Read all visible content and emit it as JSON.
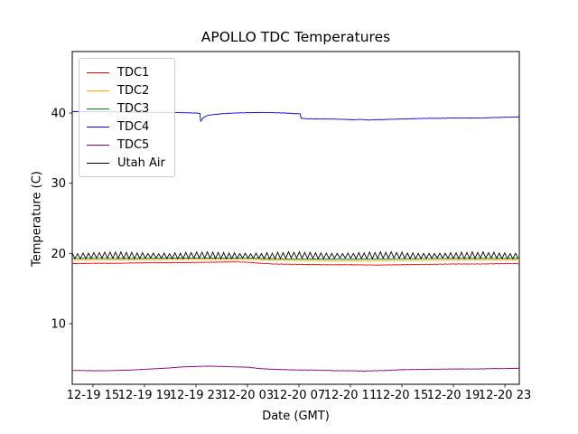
{
  "chart_data": {
    "type": "line",
    "title": "APOLLO TDC Temperatures",
    "xlabel": "Date (GMT)",
    "ylabel": "Temperature (C)",
    "grid": false,
    "legend_position": "upper left",
    "x_axis": {
      "unit": "hours after first tick (12-19 15:00 GMT)",
      "lim": [
        -1.61,
        33.12
      ],
      "ticks": [
        {
          "h": 0,
          "label": "12-19 15"
        },
        {
          "h": 4,
          "label": "12-19 19"
        },
        {
          "h": 8,
          "label": "12-19 23"
        },
        {
          "h": 12,
          "label": "12-20 03"
        },
        {
          "h": 16,
          "label": "12-20 07"
        },
        {
          "h": 20,
          "label": "12-20 11"
        },
        {
          "h": 24,
          "label": "12-20 15"
        },
        {
          "h": 28,
          "label": "12-20 19"
        },
        {
          "h": 32,
          "label": "12-20 23"
        }
      ]
    },
    "y_axis": {
      "lim": [
        1.37,
        48.76
      ],
      "ticks": [
        {
          "v": 10,
          "label": "10"
        },
        {
          "v": 20,
          "label": "20"
        },
        {
          "v": 30,
          "label": "30"
        },
        {
          "v": 40,
          "label": "40"
        }
      ]
    },
    "series": [
      {
        "name": "TDC1",
        "color": "#ff0000",
        "noise": 0.035,
        "points": [
          [
            -1.61,
            18.55
          ],
          [
            0,
            18.6
          ],
          [
            2,
            18.6
          ],
          [
            3,
            18.65
          ],
          [
            5,
            18.7
          ],
          [
            7,
            18.7
          ],
          [
            9,
            18.75
          ],
          [
            11,
            18.8
          ],
          [
            12,
            18.75
          ],
          [
            13,
            18.6
          ],
          [
            14,
            18.5
          ],
          [
            16,
            18.45
          ],
          [
            18,
            18.4
          ],
          [
            20,
            18.4
          ],
          [
            22,
            18.35
          ],
          [
            24,
            18.4
          ],
          [
            26,
            18.45
          ],
          [
            28,
            18.5
          ],
          [
            30,
            18.5
          ],
          [
            32,
            18.55
          ],
          [
            33.12,
            18.55
          ]
        ]
      },
      {
        "name": "TDC2",
        "color": "#ffa500",
        "noise": 0.02,
        "points": [
          [
            -1.61,
            19.05
          ],
          [
            4,
            19.1
          ],
          [
            8,
            19.15
          ],
          [
            12,
            19.15
          ],
          [
            14,
            19.05
          ],
          [
            16,
            19.0
          ],
          [
            20,
            18.95
          ],
          [
            24,
            19.0
          ],
          [
            28,
            19.05
          ],
          [
            33.12,
            19.1
          ]
        ]
      },
      {
        "name": "TDC3",
        "color": "#008000",
        "noise": 0.02,
        "points": [
          [
            -1.61,
            19.3
          ],
          [
            4,
            19.3
          ],
          [
            8,
            19.35
          ],
          [
            12,
            19.35
          ],
          [
            14,
            19.25
          ],
          [
            16,
            19.2
          ],
          [
            20,
            19.2
          ],
          [
            24,
            19.25
          ],
          [
            28,
            19.3
          ],
          [
            33.12,
            19.3
          ]
        ]
      },
      {
        "name": "TDC4",
        "color": "#0000ee",
        "noise": 0.03,
        "points": [
          [
            -1.61,
            40.2
          ],
          [
            0,
            40.18
          ],
          [
            2,
            40.15
          ],
          [
            4,
            40.1
          ],
          [
            6,
            40.08
          ],
          [
            7,
            40.05
          ],
          [
            8,
            40.0
          ],
          [
            8.3,
            39.95
          ],
          [
            8.37,
            38.85
          ],
          [
            8.55,
            39.3
          ],
          [
            8.8,
            39.6
          ],
          [
            9.2,
            39.75
          ],
          [
            10,
            39.9
          ],
          [
            11,
            40.0
          ],
          [
            12,
            40.05
          ],
          [
            13,
            40.08
          ],
          [
            14,
            40.05
          ],
          [
            15,
            40.0
          ],
          [
            15.8,
            39.9
          ],
          [
            16.1,
            39.9
          ],
          [
            16.17,
            39.25
          ],
          [
            16.5,
            39.2
          ],
          [
            17.5,
            39.15
          ],
          [
            18.5,
            39.15
          ],
          [
            19.5,
            39.1
          ],
          [
            20.3,
            39.05
          ],
          [
            20.8,
            39.1
          ],
          [
            21.3,
            39.0
          ],
          [
            21.8,
            39.05
          ],
          [
            23,
            39.1
          ],
          [
            24,
            39.15
          ],
          [
            25,
            39.2
          ],
          [
            26,
            39.25
          ],
          [
            27,
            39.25
          ],
          [
            28,
            39.3
          ],
          [
            29,
            39.3
          ],
          [
            30,
            39.3
          ],
          [
            31,
            39.35
          ],
          [
            32,
            39.4
          ],
          [
            33.12,
            39.45
          ]
        ]
      },
      {
        "name": "TDC5",
        "color": "#800080",
        "noise": 0.035,
        "points": [
          [
            -1.61,
            3.35
          ],
          [
            0,
            3.3
          ],
          [
            1,
            3.3
          ],
          [
            2,
            3.35
          ],
          [
            3,
            3.4
          ],
          [
            4,
            3.5
          ],
          [
            5,
            3.6
          ],
          [
            6,
            3.7
          ],
          [
            7,
            3.85
          ],
          [
            8,
            3.9
          ],
          [
            9,
            3.95
          ],
          [
            10,
            3.9
          ],
          [
            11,
            3.85
          ],
          [
            12,
            3.8
          ],
          [
            13,
            3.6
          ],
          [
            14,
            3.5
          ],
          [
            15,
            3.45
          ],
          [
            16,
            3.4
          ],
          [
            17,
            3.4
          ],
          [
            18,
            3.35
          ],
          [
            19,
            3.3
          ],
          [
            20,
            3.3
          ],
          [
            21,
            3.25
          ],
          [
            22,
            3.3
          ],
          [
            23,
            3.35
          ],
          [
            24,
            3.45
          ],
          [
            26,
            3.5
          ],
          [
            28,
            3.55
          ],
          [
            30,
            3.55
          ],
          [
            31,
            3.6
          ],
          [
            32,
            3.6
          ],
          [
            33.12,
            3.65
          ]
        ]
      },
      {
        "name": "Utah Air",
        "color": "#000000",
        "noise": 0,
        "pattern": {
          "type": "sawtooth",
          "period_hours": 0.42,
          "top": 20.1,
          "bottom": 19.3
        }
      }
    ]
  }
}
